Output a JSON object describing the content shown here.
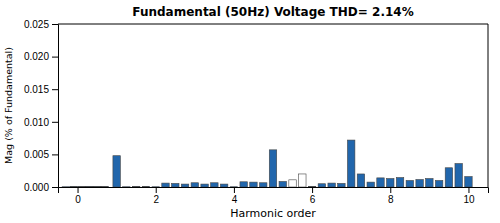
{
  "chart_data": {
    "type": "bar",
    "title": "Fundamental (50Hz) Voltage THD= 2.14%",
    "xlabel": "Harmonic order",
    "ylabel": "Mag (% of Fundamental)",
    "x": [
      -0.3,
      -0.1,
      0.1,
      0.3,
      0.5,
      0.7,
      1.0,
      1.25,
      1.5,
      1.75,
      2.0,
      2.25,
      2.5,
      2.75,
      3.0,
      3.25,
      3.5,
      3.75,
      4.0,
      4.25,
      4.5,
      4.75,
      5.0,
      5.25,
      5.5,
      5.75,
      6.0,
      6.25,
      6.5,
      6.75,
      7.0,
      7.25,
      7.5,
      7.75,
      8.0,
      8.25,
      8.5,
      8.75,
      9.0,
      9.25,
      9.5,
      9.75,
      10.0
    ],
    "values": [
      4e-05,
      8e-05,
      6e-05,
      0.0001,
      8e-05,
      5e-05,
      0.0048,
      4e-05,
      7e-05,
      8e-05,
      4e-05,
      0.0006,
      0.00055,
      0.00045,
      0.00065,
      0.00045,
      0.00065,
      0.00045,
      4e-05,
      0.0008,
      0.00075,
      0.00065,
      0.0057,
      0.00085,
      0.0011,
      0.002,
      8e-05,
      0.0005,
      0.0006,
      0.00055,
      0.0072,
      0.002,
      0.00075,
      0.0014,
      0.0013,
      0.00145,
      0.001,
      0.00115,
      0.0013,
      0.001,
      0.00295,
      0.0036,
      0.0016
    ],
    "colors": [
      "#2166ac",
      "#2166ac",
      "#2166ac",
      "#2166ac",
      "#2166ac",
      "#2166ac",
      "#2166ac",
      "#2166ac",
      "#2166ac",
      "#2166ac",
      "#2166ac",
      "#2166ac",
      "#2166ac",
      "#2166ac",
      "#2166ac",
      "#2166ac",
      "#2166ac",
      "#2166ac",
      "#2166ac",
      "#2166ac",
      "#2166ac",
      "#2166ac",
      "#2166ac",
      "#2166ac",
      "white",
      "white",
      "#2166ac",
      "#2166ac",
      "#2166ac",
      "#2166ac",
      "#2166ac",
      "#2166ac",
      "#2166ac",
      "#2166ac",
      "#2166ac",
      "#2166ac",
      "#2166ac",
      "#2166ac",
      "#2166ac",
      "#2166ac",
      "#2166ac",
      "#2166ac",
      "#2166ac"
    ],
    "xlim": [
      -0.5,
      10.5
    ],
    "xticks": [
      0,
      2,
      4,
      6,
      8,
      10
    ],
    "ylim": [
      0,
      0.025
    ],
    "yticks": [
      {
        "value": 0,
        "label": "0.000"
      },
      0.005,
      {
        "value": 0.01,
        "label": "0.010"
      },
      0.015,
      {
        "value": 0.02,
        "label": "0.020"
      },
      0.025
    ],
    "grid": false
  }
}
